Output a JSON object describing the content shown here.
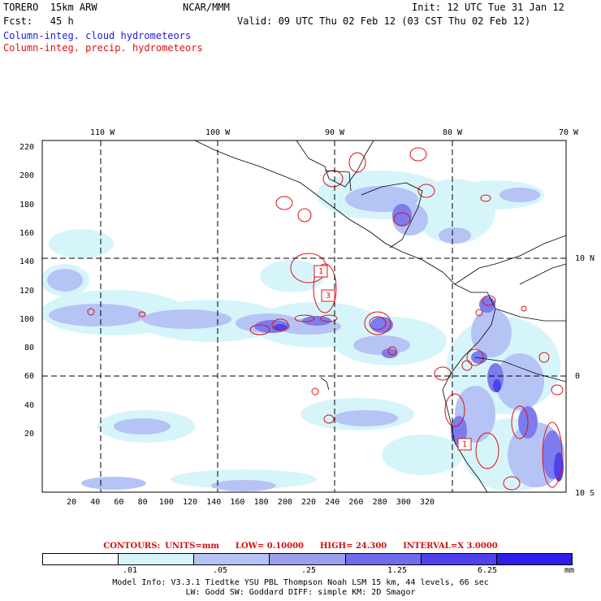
{
  "header": {
    "line1_left": "TORERO  15km ARW",
    "line1_mid": "NCAR/MMM",
    "line1_right": "Init: 12 UTC Tue 31 Jan 12",
    "line2_left": "Fcst:   45 h",
    "line2_right": "Valid: 09 UTC Thu 02 Feb 12 (03 CST Thu 02 Feb 12)",
    "field_cloud": "Column-integ. cloud hydrometeors",
    "field_precip": "Column-integ. precip. hydrometeors"
  },
  "map": {
    "top_lon_labels": [
      "110 W",
      "100 W",
      "90 W",
      "80 W",
      "70 W"
    ],
    "right_lat_labels": [
      "10 N",
      "0",
      "10 S"
    ],
    "y_ticks": [
      "220",
      "200",
      "180",
      "160",
      "140",
      "120",
      "100",
      "80",
      "60",
      "40",
      "20"
    ],
    "x_ticks": [
      "20",
      "40",
      "60",
      "80",
      "100",
      "120",
      "140",
      "160",
      "180",
      "200",
      "220",
      "240",
      "260",
      "280",
      "300",
      "320"
    ],
    "box_labels": [
      "1",
      "3",
      "1"
    ]
  },
  "contours": {
    "label": "CONTOURS:",
    "units": "UNITS=mm",
    "low": "LOW= 0.10000",
    "high": "HIGH=  24.300",
    "interval": "INTERVAL=X  3.0000"
  },
  "scale": {
    "colors": [
      "#ffffff",
      "#d6f5fb",
      "#b5c3f5",
      "#9a9ff0",
      "#6f6cee",
      "#4d42ec",
      "#2c1ee8"
    ],
    "labels": [
      ".01",
      ".05",
      ".25",
      "1.25",
      "6.25"
    ],
    "unit": "mm"
  },
  "footer": {
    "line1": "Model Info: V3.3.1   Tiedtke YSU PBL  Thompson    Noah LSM  15 km,   44 levels,    66 sec",
    "line2": "LW: Godd SW: Goddard DIFF: simple KM: 2D Smagor"
  }
}
